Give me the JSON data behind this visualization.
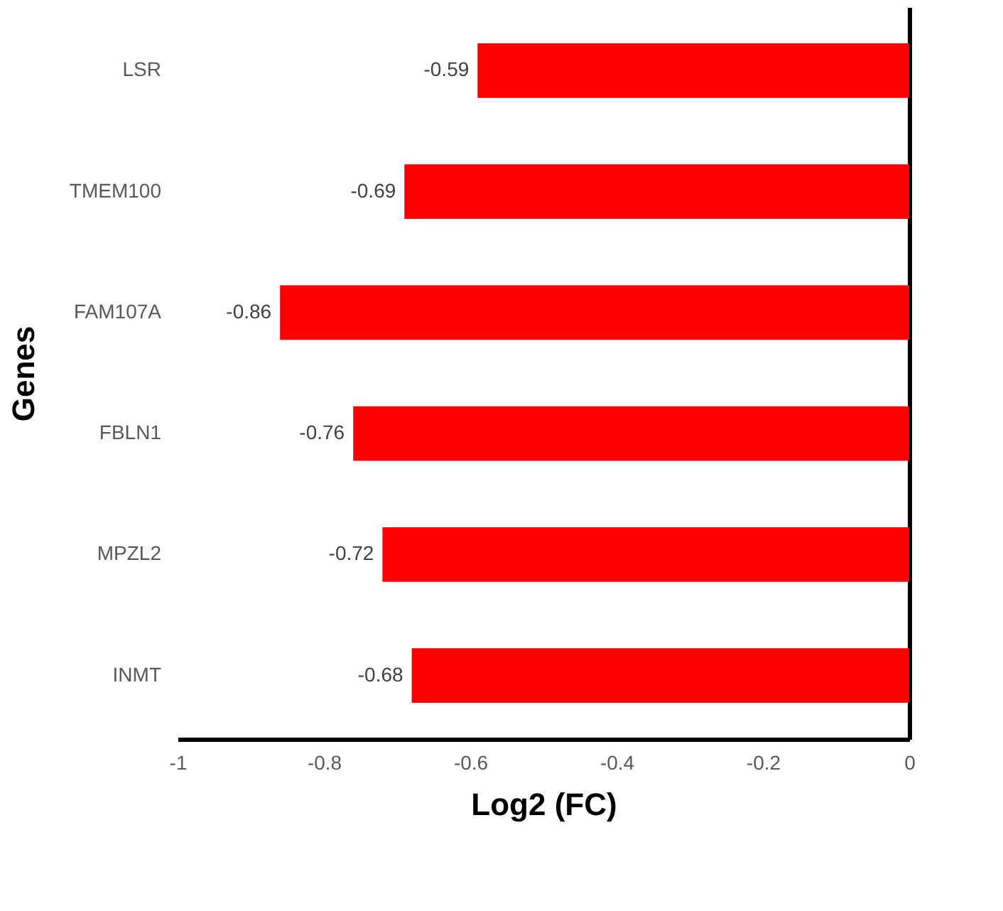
{
  "chart_data": {
    "type": "bar",
    "orientation": "horizontal",
    "xlabel": "Log2 (FC)",
    "ylabel": "Genes",
    "categories": [
      "LSR",
      "TMEM100",
      "FAM107A",
      "FBLN1",
      "MPZL2",
      "INMT"
    ],
    "values": [
      -0.59,
      -0.69,
      -0.86,
      -0.76,
      -0.72,
      -0.68
    ],
    "color": "#ff0000",
    "data_labels": true,
    "grid": false,
    "xlim": [
      -1,
      0
    ],
    "xticks": [
      -1,
      -0.8,
      -0.6,
      -0.4,
      -0.2,
      0
    ]
  }
}
